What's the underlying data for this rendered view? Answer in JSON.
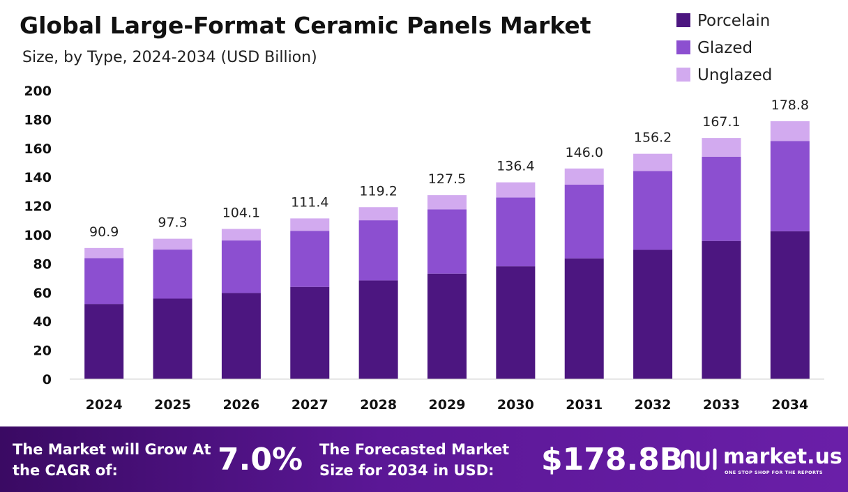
{
  "chart_data": {
    "type": "bar",
    "stacked": true,
    "title": "Global Large-Format Ceramic Panels Market",
    "subtitle": "Size, by Type, 2024-2034 (USD Billion)",
    "categories": [
      "2024",
      "2025",
      "2026",
      "2027",
      "2028",
      "2029",
      "2030",
      "2031",
      "2032",
      "2033",
      "2034"
    ],
    "series": [
      {
        "name": "Porcelain",
        "color": "#4c1680",
        "values": [
          52.1,
          55.8,
          59.7,
          63.9,
          68.4,
          73.1,
          78.2,
          83.7,
          89.6,
          95.8,
          102.5
        ]
      },
      {
        "name": "Glazed",
        "color": "#8c4fd0",
        "values": [
          31.8,
          34.0,
          36.4,
          38.9,
          41.7,
          44.6,
          47.7,
          51.1,
          54.6,
          58.4,
          62.6
        ]
      },
      {
        "name": "Unglazed",
        "color": "#d2aaef",
        "values": [
          7.0,
          7.5,
          8.0,
          8.6,
          9.1,
          9.8,
          10.5,
          11.2,
          12.0,
          12.9,
          13.7
        ]
      }
    ],
    "totals": [
      "90.9",
      "97.3",
      "104.1",
      "111.4",
      "119.2",
      "127.5",
      "136.4",
      "146.0",
      "156.2",
      "167.1",
      "178.8"
    ],
    "ylim": [
      0,
      200
    ],
    "yticks": [
      "0",
      "20",
      "40",
      "60",
      "80",
      "100",
      "120",
      "140",
      "160",
      "180",
      "200"
    ],
    "grid": false,
    "legend_position": "top-right"
  },
  "footer": {
    "cagr_text": "The Market will Grow At the CAGR of:",
    "cagr_value": "7.0%",
    "forecast_text": "The Forecasted Market Size for 2034 in USD:",
    "forecast_value": "$178.8B",
    "logo_name": "market.us",
    "logo_tagline": "ONE STOP SHOP FOR THE REPORTS",
    "logo_icon": "market-us-logo-icon"
  }
}
